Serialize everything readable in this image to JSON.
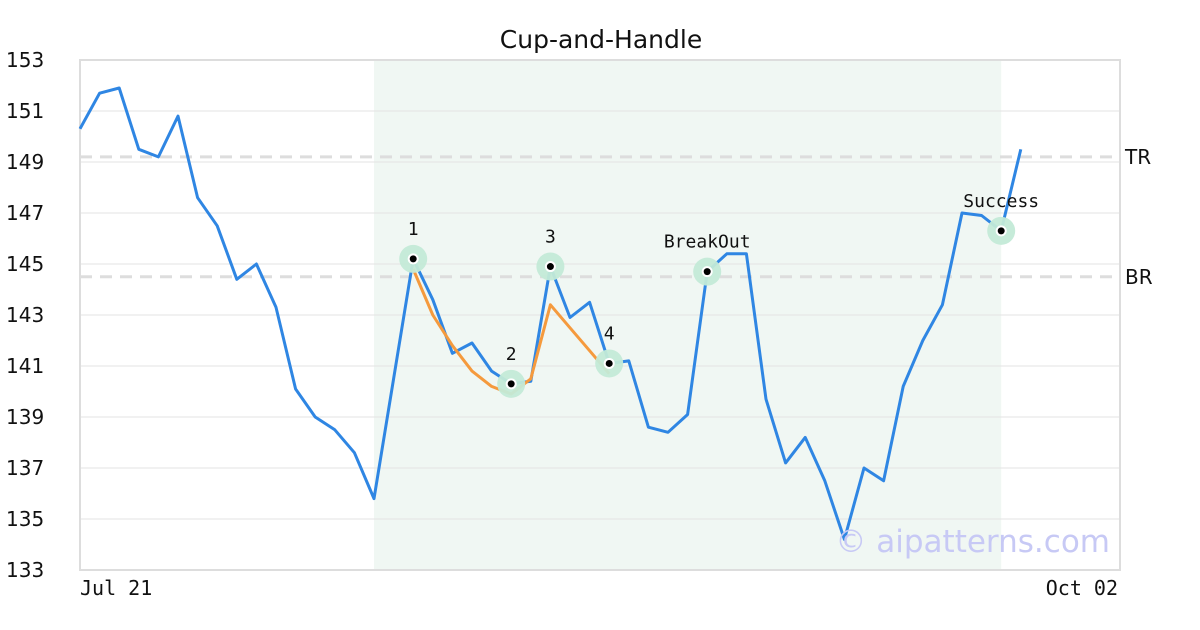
{
  "chart_data": {
    "type": "line",
    "title": "Cup-and-Handle",
    "xlabel": "",
    "ylabel": "",
    "ylim": [
      133,
      153
    ],
    "yticks": [
      "133",
      "135",
      "137",
      "139",
      "141",
      "143",
      "145",
      "147",
      "149",
      "151",
      "153"
    ],
    "x_tick_labels": [
      {
        "index": 0,
        "label": "Jul 21"
      },
      {
        "index": 49,
        "label": "Oct 02"
      }
    ],
    "grid": true,
    "highlight_range": {
      "start_index": 15,
      "end_index": 47
    },
    "series": [
      {
        "color": "#2f86e3",
        "values": [
          150.3,
          151.7,
          151.9,
          149.5,
          149.2,
          150.8,
          147.6,
          146.5,
          144.4,
          145.0,
          143.3,
          140.1,
          139.0,
          138.5,
          137.6,
          135.8,
          140.5,
          145.2,
          143.6,
          141.5,
          141.9,
          140.8,
          140.3,
          140.4,
          144.9,
          142.9,
          143.5,
          141.1,
          141.2,
          138.6,
          138.4,
          139.1,
          144.7,
          145.4,
          145.4,
          139.7,
          137.2,
          138.2,
          136.5,
          134.2,
          137.0,
          136.5,
          140.2,
          142.0,
          143.4,
          147.0,
          146.9,
          146.3,
          149.5
        ]
      },
      {
        "color": "#f59a3d",
        "segment": true,
        "start_index": 17,
        "values": [
          144.8,
          143.0,
          141.8,
          140.8,
          140.2,
          139.9,
          140.5,
          143.4,
          142.5,
          141.6,
          140.7
        ]
      }
    ],
    "reference_lines": [
      {
        "label": "TR",
        "y": 149.2,
        "color": "#dddddd"
      },
      {
        "label": "BR",
        "y": 144.5,
        "color": "#dddddd"
      }
    ],
    "annotations": [
      {
        "label": "1",
        "index": 17,
        "y": 145.2
      },
      {
        "label": "2",
        "index": 22,
        "y": 140.3
      },
      {
        "label": "3",
        "index": 24,
        "y": 144.9
      },
      {
        "label": "4",
        "index": 27,
        "y": 141.1
      },
      {
        "label": "BreakOut",
        "index": 32,
        "y": 144.7
      },
      {
        "label": "Success",
        "index": 47,
        "y": 146.3
      }
    ],
    "watermark": "© aipatterns.com"
  },
  "colors": {
    "highlight": "#f0f7f3",
    "marker_halo": "#c3ead7",
    "marker_dot": "#000000",
    "grid": "#e3e3e3",
    "frame": "#dddddd"
  }
}
